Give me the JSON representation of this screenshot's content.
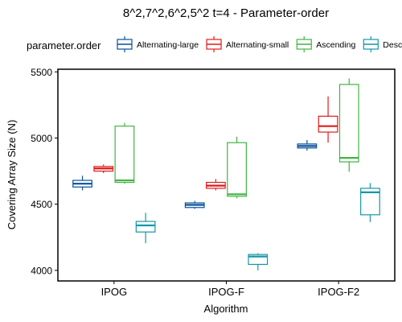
{
  "chart_data": {
    "type": "boxplot",
    "title": "8^2,7^2,6^2,5^2 t=4 - Parameter-order",
    "xlabel": "Algorithm",
    "ylabel": "Covering Array Size (N)",
    "ylim": [
      3920,
      5520
    ],
    "yticks": [
      4000,
      4500,
      5000,
      5500
    ],
    "grid": false,
    "legend": {
      "title": "parameter.order",
      "position": "top"
    },
    "categories": [
      "IPOG",
      "IPOG-F",
      "IPOG-F2"
    ],
    "series": [
      {
        "name": "Alternating-large",
        "color": "#08519c",
        "boxes": [
          {
            "min": 4605,
            "q1": 4630,
            "median": 4655,
            "q3": 4680,
            "max": 4715
          },
          {
            "min": 4465,
            "q1": 4475,
            "median": 4495,
            "q3": 4510,
            "max": 4525
          },
          {
            "min": 4905,
            "q1": 4925,
            "median": 4940,
            "q3": 4955,
            "max": 4985
          }
        ]
      },
      {
        "name": "Alternating-small",
        "color": "#e31a1c",
        "boxes": [
          {
            "min": 4735,
            "q1": 4750,
            "median": 4770,
            "q3": 4785,
            "max": 4800
          },
          {
            "min": 4605,
            "q1": 4620,
            "median": 4640,
            "q3": 4665,
            "max": 4690
          },
          {
            "min": 4965,
            "q1": 5045,
            "median": 5090,
            "q3": 5165,
            "max": 5315
          }
        ]
      },
      {
        "name": "Ascending",
        "color": "#41b341",
        "boxes": [
          {
            "min": 4655,
            "q1": 4665,
            "median": 4680,
            "q3": 5090,
            "max": 5115
          },
          {
            "min": 4545,
            "q1": 4560,
            "median": 4575,
            "q3": 4965,
            "max": 5010
          },
          {
            "min": 4745,
            "q1": 4820,
            "median": 4850,
            "q3": 5405,
            "max": 5450
          }
        ]
      },
      {
        "name": "Descending",
        "legend_label": "Desce",
        "color": "#1597a8",
        "boxes": [
          {
            "min": 4205,
            "q1": 4290,
            "median": 4340,
            "q3": 4370,
            "max": 4435
          },
          {
            "min": 4000,
            "q1": 4045,
            "median": 4105,
            "q3": 4120,
            "max": 4130
          },
          {
            "min": 4365,
            "q1": 4420,
            "median": 4590,
            "q3": 4620,
            "max": 4660
          }
        ]
      }
    ]
  }
}
